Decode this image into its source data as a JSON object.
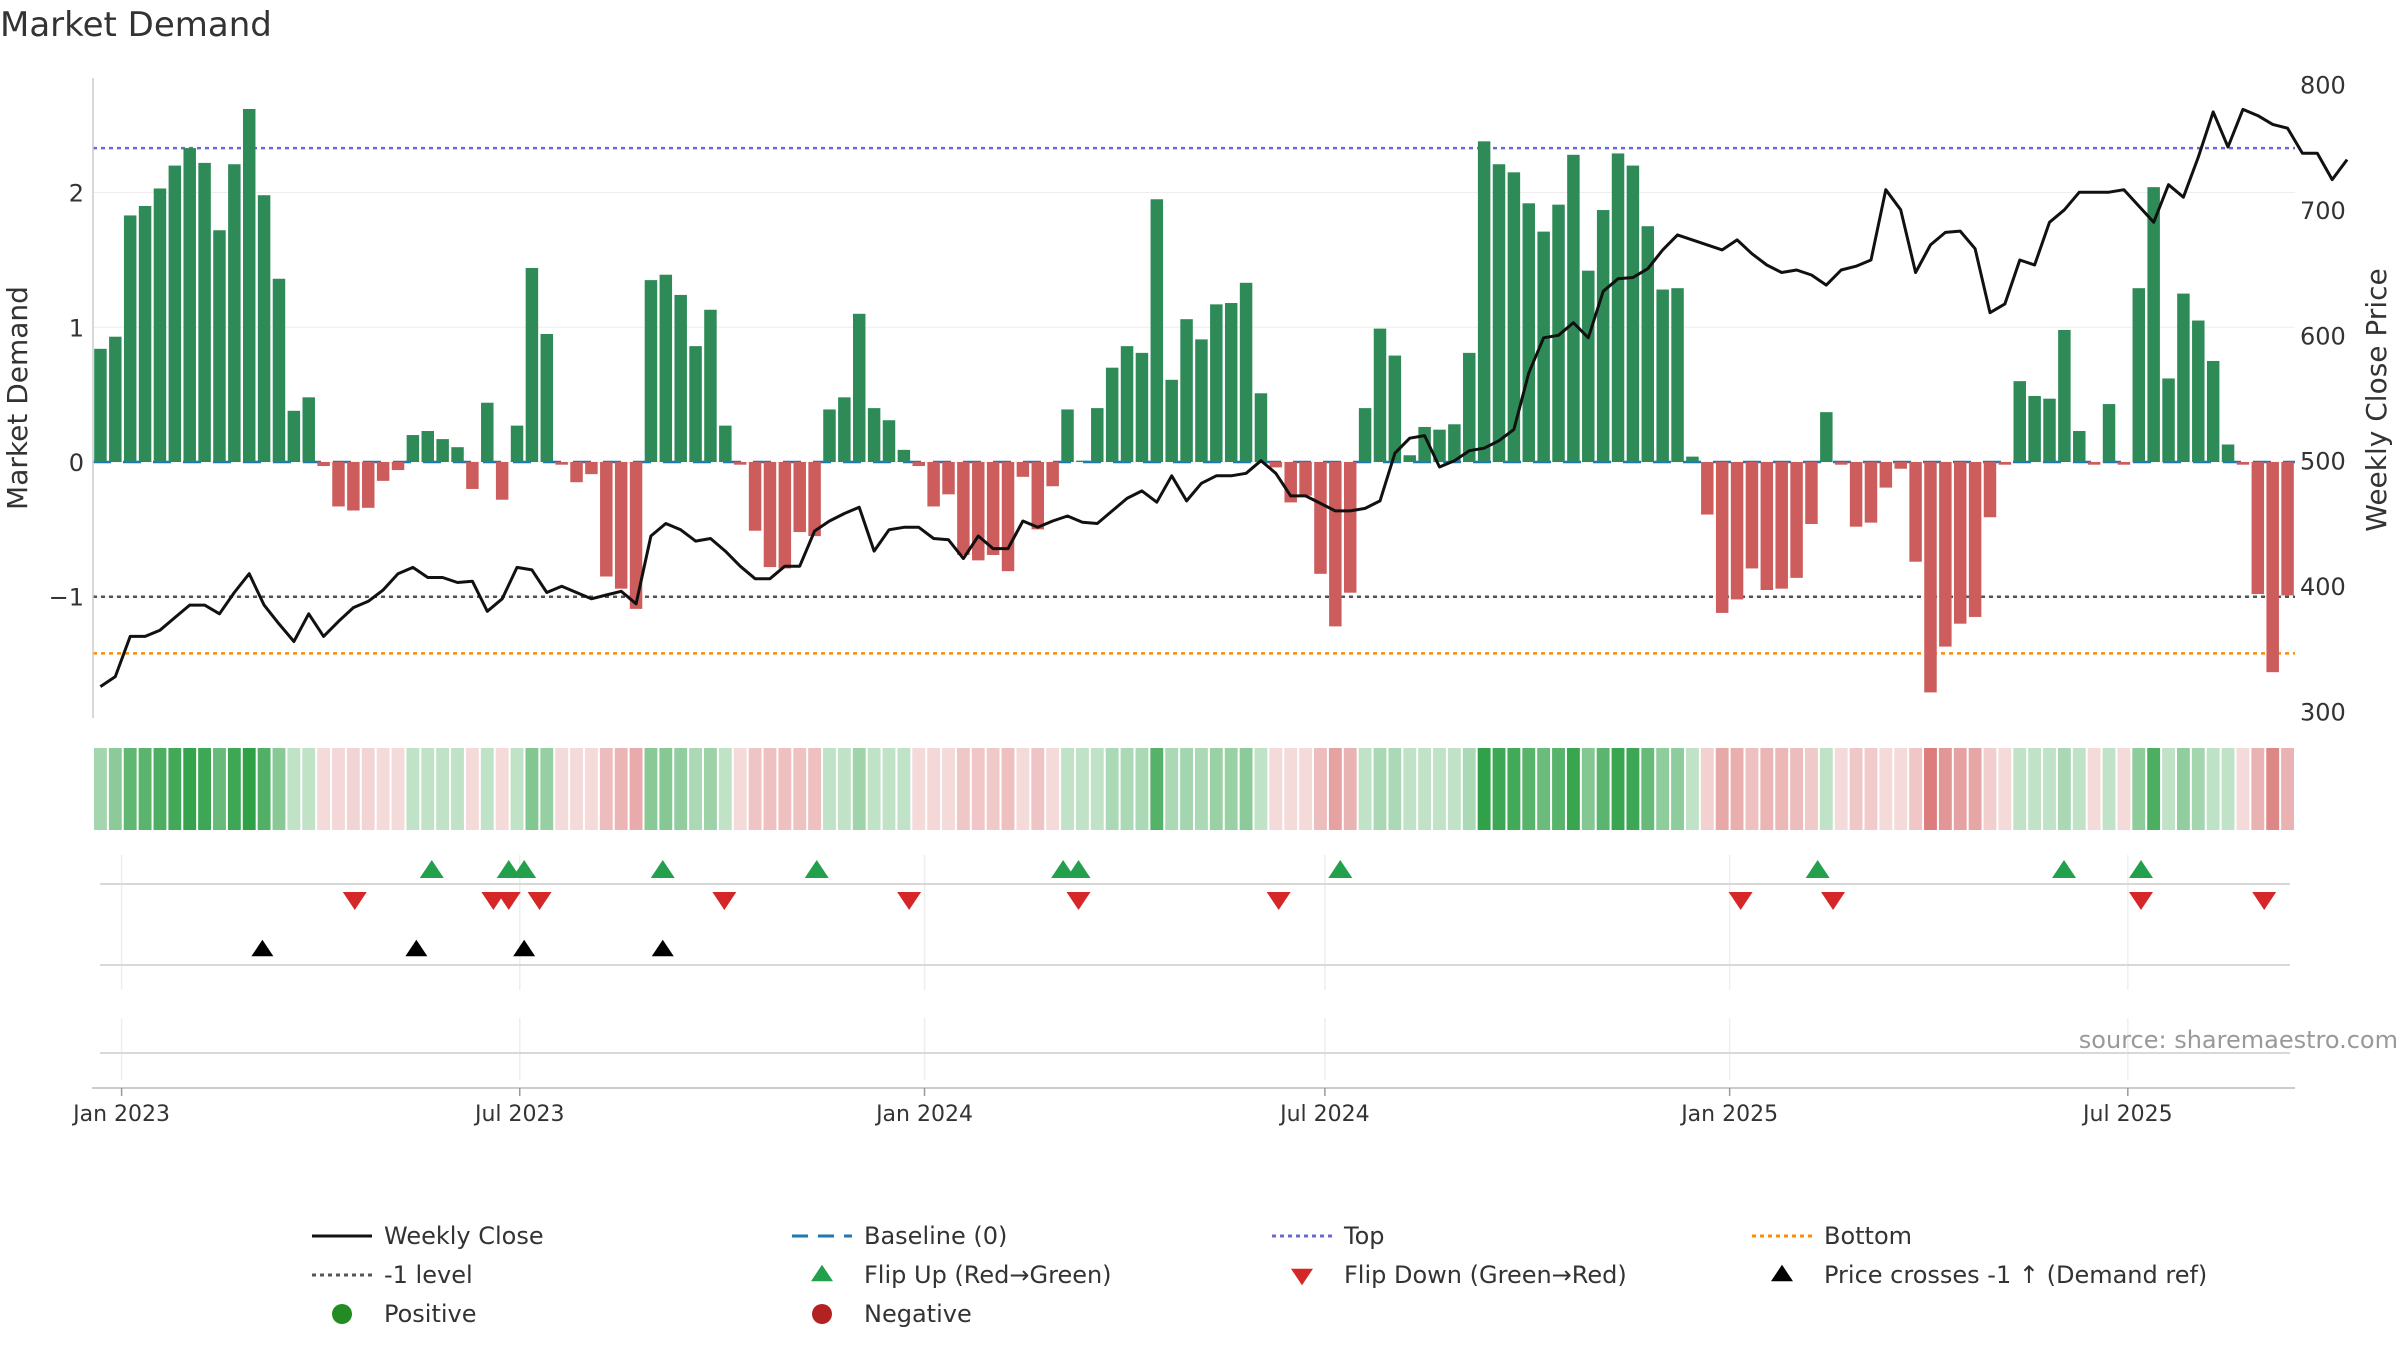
{
  "chart_data": {
    "type": "bar",
    "title": "Market Demand",
    "ylabel_left": "Market Demand",
    "ylabel_right": "Weekly Close Price",
    "source": "source: sharemaestro.com",
    "left_axis": {
      "ylim": [
        -1.9,
        2.85
      ],
      "ticks": [
        2,
        1,
        0,
        -1
      ],
      "tick_labels": [
        "2",
        "1",
        "0",
        "−1"
      ]
    },
    "right_axis": {
      "ylim": [
        295,
        805
      ],
      "ticks": [
        800,
        700,
        600,
        500,
        400,
        300
      ],
      "tick_labels": [
        "800",
        "700",
        "600",
        "500",
        "400",
        "300"
      ]
    },
    "x_axis": {
      "start": "2022-12-19",
      "end": "2025-09-15",
      "ticks": [
        "2023-01-01",
        "2023-07-01",
        "2024-01-01",
        "2024-07-01",
        "2025-01-01",
        "2025-07-01"
      ],
      "tick_labels": [
        "Jan 2023",
        "Jul 2023",
        "Jan 2024",
        "Jul 2024",
        "Jan 2025",
        "Jul 2025"
      ]
    },
    "levels": {
      "top": 2.33,
      "bottom": -1.42,
      "minus_one": -1,
      "baseline": 0
    },
    "demand": [
      0.84,
      0.93,
      1.83,
      1.9,
      2.03,
      2.2,
      2.33,
      2.22,
      1.72,
      2.21,
      2.62,
      1.98,
      1.36,
      0.38,
      0.48,
      -0.03,
      -0.33,
      -0.36,
      -0.34,
      -0.14,
      -0.06,
      0.2,
      0.23,
      0.17,
      0.11,
      -0.2,
      0.44,
      -0.28,
      0.27,
      1.44,
      0.95,
      -0.02,
      -0.15,
      -0.09,
      -0.85,
      -0.94,
      -1.09,
      1.35,
      1.39,
      1.24,
      0.86,
      1.13,
      0.27,
      -0.02,
      -0.51,
      -0.78,
      -0.79,
      -0.52,
      -0.55,
      0.39,
      0.48,
      1.1,
      0.4,
      0.31,
      0.09,
      -0.03,
      -0.33,
      -0.24,
      -0.69,
      -0.73,
      -0.69,
      -0.81,
      -0.11,
      -0.5,
      -0.18,
      0.39,
      0.01,
      0.4,
      0.7,
      0.86,
      0.81,
      1.95,
      0.61,
      1.06,
      0.91,
      1.17,
      1.18,
      1.33,
      0.51,
      -0.04,
      -0.3,
      -0.25,
      -0.83,
      -1.22,
      -0.97,
      0.4,
      0.99,
      0.79,
      0.05,
      0.26,
      0.24,
      0.28,
      0.81,
      2.38,
      2.21,
      2.15,
      1.92,
      1.71,
      1.91,
      2.28,
      1.42,
      1.87,
      2.29,
      2.2,
      1.75,
      1.28,
      1.29,
      0.04,
      -0.39,
      -1.12,
      -1.02,
      -0.79,
      -0.95,
      -0.94,
      -0.86,
      -0.46,
      0.37,
      -0.02,
      -0.48,
      -0.45,
      -0.19,
      -0.05,
      -0.74,
      -1.71,
      -1.37,
      -1.2,
      -1.15,
      -0.41,
      -0.02,
      0.6,
      0.49,
      0.47,
      0.98,
      0.23,
      -0.02,
      0.43,
      -0.02,
      1.29,
      2.04,
      0.62,
      1.25,
      1.05,
      0.75,
      0.13,
      -0.02,
      -0.98,
      -1.56,
      -0.99
    ],
    "weekly_close": [
      320,
      328,
      360,
      360,
      365,
      375,
      385,
      385,
      378,
      395,
      410,
      385,
      370,
      356,
      378,
      360,
      372,
      383,
      388,
      397,
      410,
      415,
      407,
      407,
      403,
      404,
      380,
      390,
      415,
      413,
      395,
      400,
      395,
      390,
      393,
      396,
      386,
      440,
      450,
      445,
      436,
      438,
      428,
      416,
      406,
      406,
      416,
      416,
      444,
      452,
      458,
      463,
      428,
      445,
      447,
      447,
      438,
      437,
      422,
      440,
      430,
      430,
      452,
      447,
      452,
      456,
      451,
      450,
      460,
      470,
      476,
      467,
      488,
      468,
      482,
      488,
      488,
      490,
      500,
      490,
      472,
      472,
      466,
      460,
      460,
      462,
      468,
      506,
      518,
      520,
      495,
      500,
      508,
      510,
      516,
      525,
      570,
      598,
      600,
      610,
      598,
      635,
      645,
      646,
      653,
      668,
      680,
      676,
      672,
      668,
      676,
      665,
      656,
      650,
      652,
      648,
      640,
      652,
      655,
      660,
      716,
      700,
      650,
      672,
      682,
      683,
      669,
      618,
      625,
      660,
      656,
      690,
      700,
      714,
      714,
      714,
      716,
      703,
      690,
      720,
      710,
      742,
      778,
      750,
      780,
      775,
      768,
      765,
      745,
      745,
      724,
      740
    ],
    "heat_strip": [
      0.44,
      0.55,
      0.76,
      0.79,
      0.85,
      0.91,
      0.97,
      0.92,
      0.72,
      0.92,
      1.0,
      0.83,
      0.57,
      0.3,
      0.3,
      0.2,
      0.21,
      0.23,
      0.23,
      0.2,
      0.2,
      0.3,
      0.3,
      0.3,
      0.3,
      0.2,
      0.3,
      0.2,
      0.3,
      0.6,
      0.5,
      0.2,
      0.2,
      0.2,
      0.36,
      0.4,
      0.46,
      0.57,
      0.58,
      0.52,
      0.4,
      0.47,
      0.3,
      0.2,
      0.32,
      0.34,
      0.34,
      0.33,
      0.34,
      0.3,
      0.3,
      0.46,
      0.3,
      0.3,
      0.3,
      0.2,
      0.21,
      0.2,
      0.3,
      0.31,
      0.29,
      0.34,
      0.2,
      0.32,
      0.2,
      0.3,
      0.3,
      0.3,
      0.4,
      0.4,
      0.4,
      0.81,
      0.4,
      0.44,
      0.4,
      0.49,
      0.49,
      0.55,
      0.3,
      0.2,
      0.2,
      0.2,
      0.36,
      0.51,
      0.41,
      0.3,
      0.41,
      0.4,
      0.3,
      0.3,
      0.3,
      0.3,
      0.4,
      0.99,
      0.92,
      0.9,
      0.8,
      0.71,
      0.8,
      0.95,
      0.59,
      0.78,
      0.95,
      0.92,
      0.73,
      0.53,
      0.54,
      0.3,
      0.25,
      0.47,
      0.43,
      0.34,
      0.4,
      0.39,
      0.36,
      0.29,
      0.3,
      0.2,
      0.3,
      0.28,
      0.2,
      0.2,
      0.31,
      0.71,
      0.57,
      0.5,
      0.48,
      0.26,
      0.2,
      0.3,
      0.3,
      0.3,
      0.41,
      0.3,
      0.2,
      0.3,
      0.2,
      0.54,
      0.85,
      0.3,
      0.52,
      0.44,
      0.31,
      0.3,
      0.2,
      0.41,
      0.65,
      0.41
    ],
    "flip_up_dates": [
      "2023-05-22",
      "2023-06-26",
      "2023-07-03",
      "2023-09-04",
      "2023-11-13",
      "2024-03-04",
      "2024-03-11",
      "2024-07-08",
      "2025-02-10",
      "2025-06-02",
      "2025-07-07"
    ],
    "flip_down_dates": [
      "2023-04-17",
      "2023-06-19",
      "2023-06-26",
      "2023-07-10",
      "2023-10-02",
      "2023-12-25",
      "2024-03-11",
      "2024-06-10",
      "2025-01-06",
      "2025-02-17",
      "2025-07-07",
      "2025-09-01"
    ],
    "price_cross_dates": [
      "2023-03-06",
      "2023-05-15",
      "2023-07-03",
      "2023-09-04"
    ],
    "legend": [
      {
        "label": "Weekly Close",
        "kind": "line"
      },
      {
        "label": "Baseline (0)",
        "kind": "dash"
      },
      {
        "label": "Top",
        "kind": "dots"
      },
      {
        "label": "Bottom",
        "kind": "dots"
      },
      {
        "label": "-1 level",
        "kind": "dots"
      },
      {
        "label": "Flip Up (Red→Green)",
        "kind": "tri-up"
      },
      {
        "label": "Flip Down (Green→Red)",
        "kind": "tri-down"
      },
      {
        "label": "Price crosses -1 ↑ (Demand ref)",
        "kind": "tri-up"
      },
      {
        "label": "Positive",
        "kind": "circle"
      },
      {
        "label": "Negative",
        "kind": "circle"
      }
    ],
    "colors": {
      "positive_bar": "#2e8b57",
      "negative_bar": "#cd5c5c",
      "price_line": "#111111",
      "baseline": "#1f77b4",
      "top": "#6a6ad4",
      "bottom": "#ff8c00",
      "minus_one": "#555555",
      "flip_up": "#22a04b",
      "flip_down": "#d62728",
      "cross": "#000000",
      "positive_dot": "#228b22",
      "negative_dot": "#b22222"
    }
  }
}
